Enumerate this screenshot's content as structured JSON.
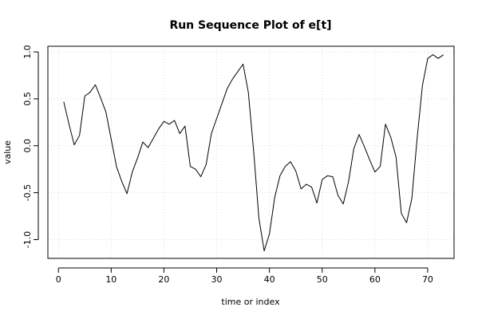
{
  "chart_data": {
    "type": "line",
    "title": "Run Sequence Plot of e[t]",
    "xlabel": "time or index",
    "ylabel": "value",
    "xlim": [
      -2,
      75
    ],
    "ylim": [
      -1.2,
      1.06
    ],
    "x_ticks": [
      0,
      10,
      20,
      30,
      40,
      50,
      60,
      70
    ],
    "y_ticks": [
      -1.0,
      -0.5,
      0.0,
      0.5,
      1.0
    ],
    "x_tick_labels": [
      "0",
      "10",
      "20",
      "30",
      "40",
      "50",
      "60",
      "70"
    ],
    "y_tick_labels": [
      "-1.0",
      "-0.5",
      "0.0",
      "0.5",
      "1.0"
    ],
    "grid": true,
    "series": [
      {
        "color": "#000000",
        "x": [
          1,
          2,
          3,
          4,
          5,
          6,
          7,
          8,
          9,
          10,
          11,
          12,
          13,
          14,
          15,
          16,
          17,
          18,
          19,
          20,
          21,
          22,
          23,
          24,
          25,
          26,
          27,
          28,
          29,
          30,
          31,
          32,
          33,
          34,
          35,
          36,
          37,
          38,
          39,
          40,
          41,
          42,
          43,
          44,
          45,
          46,
          47,
          48,
          49,
          50,
          51,
          52,
          53,
          54,
          55,
          56,
          57,
          58,
          59,
          60,
          61,
          62,
          63,
          64,
          65,
          66,
          67,
          68,
          69,
          70,
          71,
          72,
          73
        ],
        "y": [
          0.47,
          0.23,
          0.01,
          0.11,
          0.53,
          0.57,
          0.65,
          0.51,
          0.36,
          0.07,
          -0.22,
          -0.38,
          -0.51,
          -0.28,
          -0.13,
          0.04,
          -0.02,
          0.08,
          0.18,
          0.26,
          0.23,
          0.27,
          0.13,
          0.21,
          -0.22,
          -0.25,
          -0.33,
          -0.2,
          0.13,
          0.29,
          0.45,
          0.61,
          0.71,
          0.79,
          0.87,
          0.57,
          -0.05,
          -0.77,
          -1.12,
          -0.94,
          -0.55,
          -0.32,
          -0.22,
          -0.17,
          -0.27,
          -0.46,
          -0.41,
          -0.44,
          -0.61,
          -0.36,
          -0.32,
          -0.33,
          -0.53,
          -0.62,
          -0.38,
          -0.03,
          0.12,
          -0.01,
          -0.15,
          -0.28,
          -0.22,
          0.23,
          0.09,
          -0.12,
          -0.72,
          -0.82,
          -0.56,
          0.08,
          0.64,
          0.93,
          0.97,
          0.93,
          0.97
        ]
      }
    ]
  }
}
